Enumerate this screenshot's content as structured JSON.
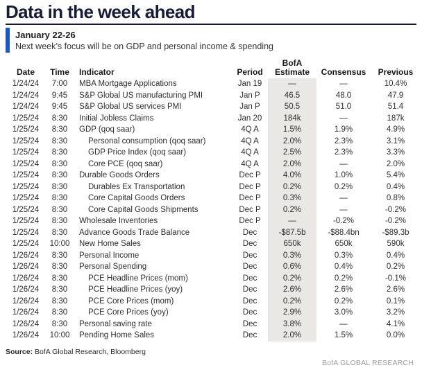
{
  "header": {
    "title": "Data in the week ahead",
    "date_range": "January 22-26",
    "subtitle": "Next week’s focus will be on GDP and personal income & spending"
  },
  "colors": {
    "title_navy": "#191b3a",
    "accent_blue": "#1859c6",
    "estimate_shade_gray": "#e9e8e5",
    "body_text": "#2d2d2d",
    "brand_gray": "#9c9c9c"
  },
  "table": {
    "columns": [
      {
        "key": "date",
        "label": "Date"
      },
      {
        "key": "time",
        "label": "Time"
      },
      {
        "key": "indicator",
        "label": "Indicator"
      },
      {
        "key": "period",
        "label": "Period"
      },
      {
        "key": "estimate",
        "label_top": "BofA",
        "label_bottom": "Estimate"
      },
      {
        "key": "consensus",
        "label": "Consensus"
      },
      {
        "key": "previous",
        "label": "Previous"
      }
    ],
    "rows": [
      {
        "date": "1/24/24",
        "time": "7:00",
        "indicator": "MBA Mortgage Applications",
        "indent": false,
        "period": "Jan 19",
        "estimate": "—",
        "consensus": "—",
        "previous": "10.4%"
      },
      {
        "date": "1/24/24",
        "time": "9:45",
        "indicator": "S&P Global US manufacturing PMI",
        "indent": false,
        "period": "Jan P",
        "estimate": "46.5",
        "consensus": "48.0",
        "previous": "47.9"
      },
      {
        "date": "1/24/24",
        "time": "9:45",
        "indicator": "S&P Global US services PMI",
        "indent": false,
        "period": "Jan P",
        "estimate": "50.5",
        "consensus": "51.0",
        "previous": "51.4"
      },
      {
        "date": "1/25/24",
        "time": "8:30",
        "indicator": "Initial Jobless Claims",
        "indent": false,
        "period": "Jan 20",
        "estimate": "184k",
        "consensus": "—",
        "previous": "187k"
      },
      {
        "date": "1/25/24",
        "time": "8:30",
        "indicator": "GDP (qoq saar)",
        "indent": false,
        "period": "4Q A",
        "estimate": "1.5%",
        "consensus": "1.9%",
        "previous": "4.9%"
      },
      {
        "date": "1/25/24",
        "time": "8:30",
        "indicator": "Personal consumption (qoq saar)",
        "indent": true,
        "period": "4Q A",
        "estimate": "2.0%",
        "consensus": "2.3%",
        "previous": "3.1%"
      },
      {
        "date": "1/25/24",
        "time": "8:30",
        "indicator": "GDP Price Index (qoq saar)",
        "indent": true,
        "period": "4Q A",
        "estimate": "2.5%",
        "consensus": "2.3%",
        "previous": "3.3%"
      },
      {
        "date": "1/25/24",
        "time": "8:30",
        "indicator": "Core PCE (qoq saar)",
        "indent": true,
        "period": "4Q A",
        "estimate": "2.0%",
        "consensus": "—",
        "previous": "2.0%"
      },
      {
        "date": "1/25/24",
        "time": "8:30",
        "indicator": "Durable Goods Orders",
        "indent": false,
        "period": "Dec P",
        "estimate": "4.0%",
        "consensus": "1.0%",
        "previous": "5.4%"
      },
      {
        "date": "1/25/24",
        "time": "8:30",
        "indicator": "Durables Ex Transportation",
        "indent": true,
        "period": "Dec P",
        "estimate": "0.2%",
        "consensus": "0.2%",
        "previous": "0.4%"
      },
      {
        "date": "1/25/24",
        "time": "8:30",
        "indicator": "Core Capital Goods Orders",
        "indent": true,
        "period": "Dec P",
        "estimate": "0.3%",
        "consensus": "—",
        "previous": "0.8%"
      },
      {
        "date": "1/25/24",
        "time": "8:30",
        "indicator": "Core Capital Goods Shipments",
        "indent": true,
        "period": "Dec P",
        "estimate": "0.2%",
        "consensus": "—",
        "previous": "-0.2%"
      },
      {
        "date": "1/25/24",
        "time": "8:30",
        "indicator": "Wholesale Inventories",
        "indent": false,
        "period": "Dec P",
        "estimate": "—",
        "consensus": "-0.2%",
        "previous": "-0.2%"
      },
      {
        "date": "1/25/24",
        "time": "8:30",
        "indicator": "Advance Goods Trade Balance",
        "indent": false,
        "period": "Dec",
        "estimate": "-$87.5b",
        "consensus": "-$88.4bn",
        "previous": "-$89.3b"
      },
      {
        "date": "1/25/24",
        "time": "10:00",
        "indicator": "New Home Sales",
        "indent": false,
        "period": "Dec",
        "estimate": "650k",
        "consensus": "650k",
        "previous": "590k"
      },
      {
        "date": "1/26/24",
        "time": "8:30",
        "indicator": "Personal Income",
        "indent": false,
        "period": "Dec",
        "estimate": "0.3%",
        "consensus": "0.3%",
        "previous": "0.4%"
      },
      {
        "date": "1/26/24",
        "time": "8:30",
        "indicator": "Personal Spending",
        "indent": false,
        "period": "Dec",
        "estimate": "0.6%",
        "consensus": "0.4%",
        "previous": "0.2%"
      },
      {
        "date": "1/26/24",
        "time": "8:30",
        "indicator": "PCE Headline Prices (mom)",
        "indent": true,
        "period": "Dec",
        "estimate": "0.2%",
        "consensus": "0.2%",
        "previous": "-0.1%"
      },
      {
        "date": "1/26/24",
        "time": "8:30",
        "indicator": "PCE Headline Prices (yoy)",
        "indent": true,
        "period": "Dec",
        "estimate": "2.6%",
        "consensus": "2.6%",
        "previous": "2.6%"
      },
      {
        "date": "1/26/24",
        "time": "8:30",
        "indicator": "PCE Core Prices (mom)",
        "indent": true,
        "period": "Dec",
        "estimate": "0.2%",
        "consensus": "0.2%",
        "previous": "0.1%"
      },
      {
        "date": "1/26/24",
        "time": "8:30",
        "indicator": "PCE Core Prices (yoy)",
        "indent": true,
        "period": "Dec",
        "estimate": "2.9%",
        "consensus": "3.0%",
        "previous": "3.2%"
      },
      {
        "date": "1/26/24",
        "time": "8:30",
        "indicator": "Personal saving rate",
        "indent": false,
        "period": "Dec",
        "estimate": "3.8%",
        "consensus": "—",
        "previous": "4.1%"
      },
      {
        "date": "1/26/24",
        "time": "10:00",
        "indicator": "Pending Home Sales",
        "indent": false,
        "period": "Dec",
        "estimate": "2.0%",
        "consensus": "1.5%",
        "previous": "0.0%"
      }
    ]
  },
  "footer": {
    "source_label": "Source:",
    "source_text": " BofA Global Research, Bloomberg",
    "brand": "BofA GLOBAL RESEARCH"
  }
}
